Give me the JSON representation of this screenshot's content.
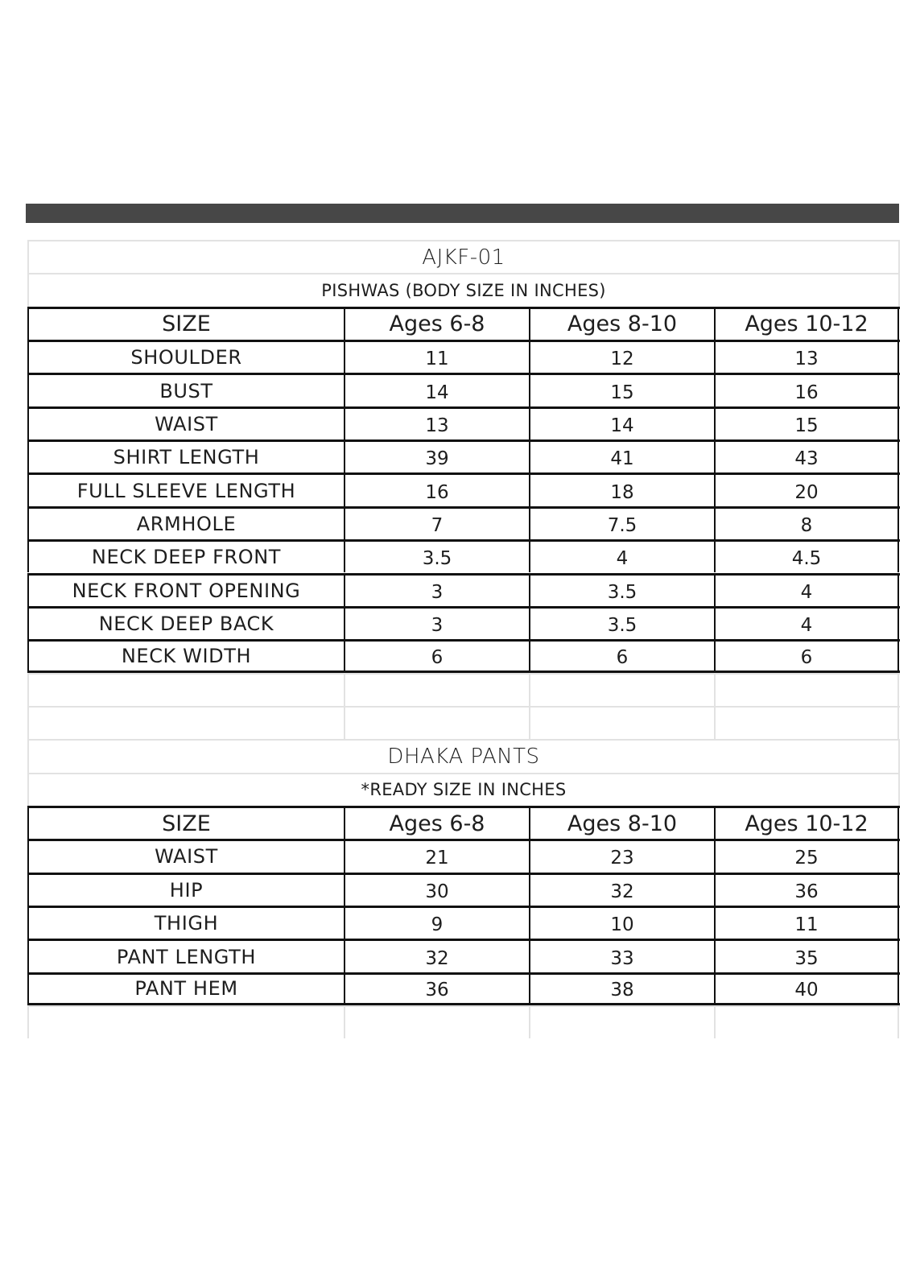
{
  "top_bar_color": "#474747",
  "sections": [
    {
      "title": "AJKF-01",
      "subtitle": "PISHWAS (BODY SIZE IN INCHES)",
      "headers": [
        "SIZE",
        "Ages 6-8",
        "Ages 8-10",
        "Ages 10-12"
      ],
      "rows": [
        [
          "SHOULDER",
          "11",
          "12",
          "13"
        ],
        [
          "BUST",
          "14",
          "15",
          "16"
        ],
        [
          "WAIST",
          "13",
          "14",
          "15"
        ],
        [
          "SHIRT LENGTH",
          "39",
          "41",
          "43"
        ],
        [
          "FULL SLEEVE LENGTH",
          "16",
          "18",
          "20"
        ],
        [
          "ARMHOLE",
          "7",
          "7.5",
          "8"
        ],
        [
          "NECK DEEP FRONT",
          "3.5",
          "4",
          "4.5"
        ],
        [
          "NECK FRONT OPENING",
          "3",
          "3.5",
          "4"
        ],
        [
          "NECK DEEP BACK",
          "3",
          "3.5",
          "4"
        ],
        [
          "NECK WIDTH",
          "6",
          "6",
          "6"
        ]
      ]
    },
    {
      "title": "DHAKA PANTS",
      "subtitle": "*READY SIZE IN INCHES",
      "headers": [
        "SIZE",
        "Ages 6-8",
        "Ages 8-10",
        "Ages 10-12"
      ],
      "rows": [
        [
          "WAIST",
          "21",
          "23",
          "25"
        ],
        [
          "HIP",
          "30",
          "32",
          "36"
        ],
        [
          "THIGH",
          "9",
          "10",
          "11"
        ],
        [
          "PANT LENGTH",
          "32",
          "33",
          "35"
        ],
        [
          "PANT HEM",
          "36",
          "38",
          "40"
        ]
      ]
    }
  ]
}
